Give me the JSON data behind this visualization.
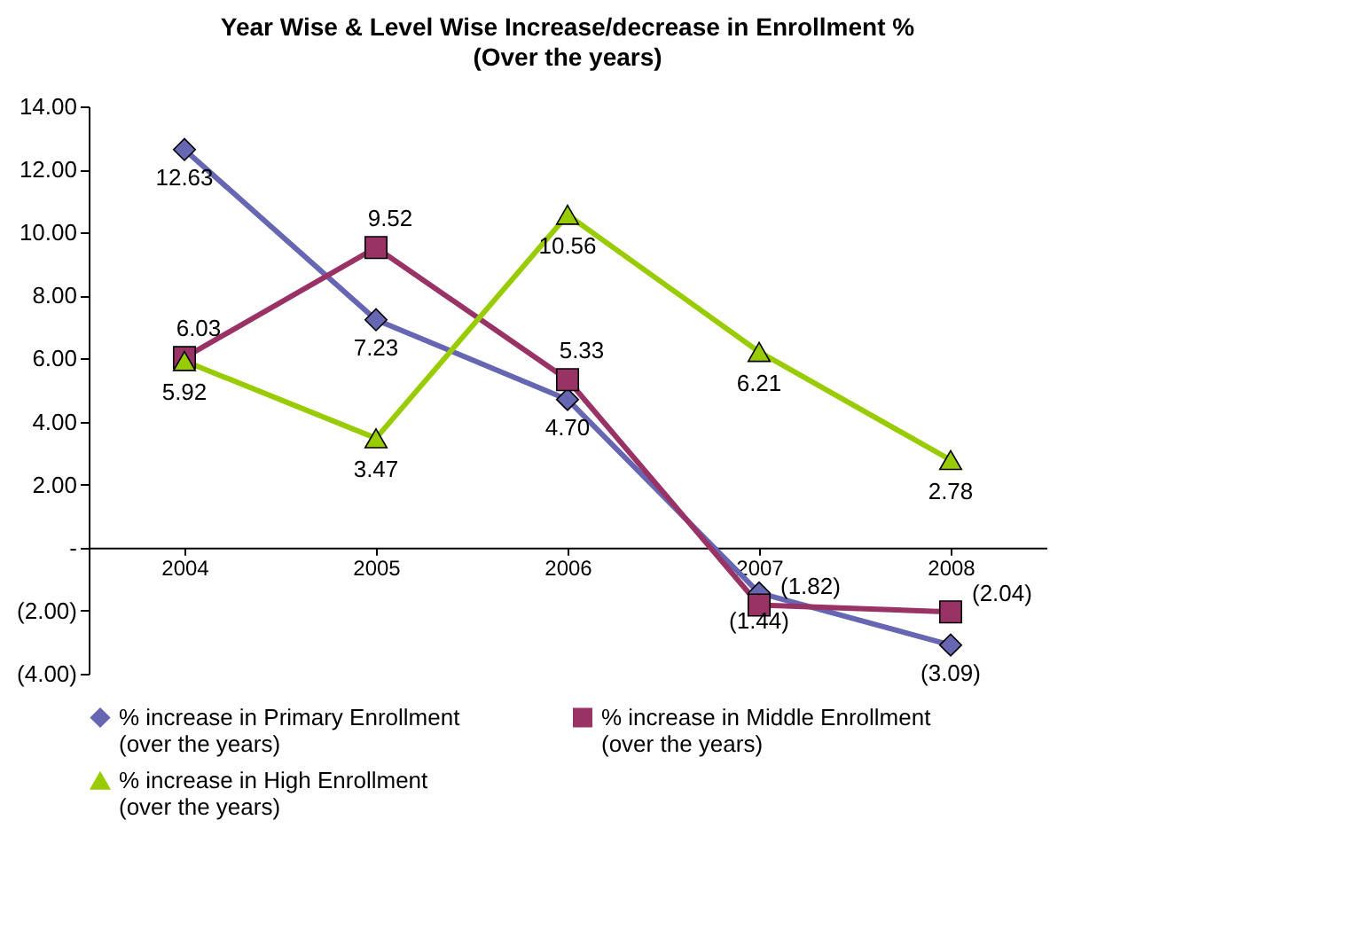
{
  "chart_data": {
    "type": "line",
    "title": "Year Wise & Level Wise Increase/decrease in Enrollment %",
    "subtitle": "(Over the years)",
    "categories": [
      "2004",
      "2005",
      "2006",
      "2007",
      "2008"
    ],
    "series": [
      {
        "name": "% increase in Primary Enrollment (over the years)",
        "color": "#6666b3",
        "marker": "diamond",
        "values": [
          12.63,
          7.23,
          4.7,
          -1.44,
          -3.09
        ],
        "value_labels": [
          "12.63",
          "7.23",
          "4.70",
          "(1.44)",
          "(3.09)"
        ]
      },
      {
        "name": "% increase in Middle Enrollment (over the years)",
        "color": "#993366",
        "marker": "square",
        "values": [
          6.03,
          9.52,
          5.33,
          -1.82,
          -2.04
        ],
        "value_labels": [
          "6.03",
          "9.52",
          "5.33",
          "(1.82)",
          "(2.04)"
        ]
      },
      {
        "name": "% increase in High Enrollment (over the years)",
        "color": "#99cc00",
        "marker": "triangle",
        "values": [
          5.92,
          3.47,
          10.56,
          6.21,
          2.78
        ],
        "value_labels": [
          "5.92",
          "3.47",
          "10.56",
          "6.21",
          "2.78"
        ]
      }
    ],
    "ylim": [
      -4,
      14
    ],
    "yticks": [
      {
        "value": -4,
        "label": "(4.00)"
      },
      {
        "value": -2,
        "label": "(2.00)"
      },
      {
        "value": 0,
        "label": "-"
      },
      {
        "value": 2,
        "label": "2.00"
      },
      {
        "value": 4,
        "label": "4.00"
      },
      {
        "value": 6,
        "label": "6.00"
      },
      {
        "value": 8,
        "label": "8.00"
      },
      {
        "value": 10,
        "label": "10.00"
      },
      {
        "value": 12,
        "label": "12.00"
      },
      {
        "value": 14,
        "label": "14.00"
      }
    ],
    "grid": false,
    "legend": "bottom",
    "line_style": "solid"
  }
}
